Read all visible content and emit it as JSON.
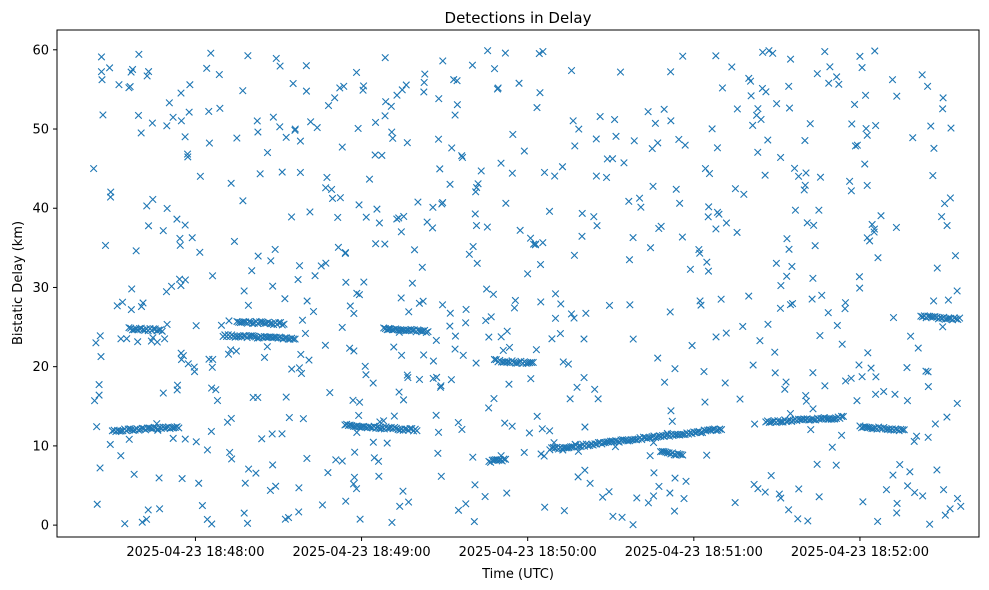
{
  "chart_data": {
    "type": "scatter",
    "title": "Detections in Delay",
    "xlabel": "Time (UTC)",
    "ylabel": "Bistatic Delay (km)",
    "marker": "x",
    "color": "#1f77b4",
    "x_start": "2025-04-23 18:47:23",
    "x_end": "2025-04-23 18:52:37",
    "xlim": [
      "2025-04-23 18:47:10",
      "2025-04-23 18:52:43"
    ],
    "ylim": [
      -1.5,
      62.5
    ],
    "x_ticks": [
      "2025-04-23 18:48:00",
      "2025-04-23 18:49:00",
      "2025-04-23 18:50:00",
      "2025-04-23 18:51:00",
      "2025-04-23 18:52:00"
    ],
    "y_ticks": [
      0,
      10,
      20,
      30,
      40,
      50,
      60
    ],
    "grid": false,
    "series": [
      {
        "tracks": [
          {
            "x_from": "2025-04-23 18:47:30",
            "x_to": "2025-04-23 18:47:54",
            "y_from": 11.9,
            "y_to": 12.4
          },
          {
            "x_from": "2025-04-23 18:47:36",
            "x_to": "2025-04-23 18:47:48",
            "y_from": 24.8,
            "y_to": 24.6
          },
          {
            "x_from": "2025-04-23 18:48:10",
            "x_to": "2025-04-23 18:48:36",
            "y_from": 23.9,
            "y_to": 23.6
          },
          {
            "x_from": "2025-04-23 18:48:15",
            "x_to": "2025-04-23 18:48:32",
            "y_from": 25.7,
            "y_to": 25.4
          },
          {
            "x_from": "2025-04-23 18:48:54",
            "x_to": "2025-04-23 18:49:20",
            "y_from": 12.6,
            "y_to": 12.0
          },
          {
            "x_from": "2025-04-23 18:49:08",
            "x_to": "2025-04-23 18:49:24",
            "y_from": 24.8,
            "y_to": 24.4
          },
          {
            "x_from": "2025-04-23 18:49:46",
            "x_to": "2025-04-23 18:49:52",
            "y_from": 8.0,
            "y_to": 8.3
          },
          {
            "x_from": "2025-04-23 18:50:08",
            "x_to": "2025-04-23 18:51:10",
            "y_from": 9.6,
            "y_to": 12.1
          },
          {
            "x_from": "2025-04-23 18:49:48",
            "x_to": "2025-04-23 18:50:02",
            "y_from": 20.8,
            "y_to": 20.4
          },
          {
            "x_from": "2025-04-23 18:50:48",
            "x_to": "2025-04-23 18:50:56",
            "y_from": 9.2,
            "y_to": 8.8
          },
          {
            "x_from": "2025-04-23 18:51:26",
            "x_to": "2025-04-23 18:51:54",
            "y_from": 13.0,
            "y_to": 13.6
          },
          {
            "x_from": "2025-04-23 18:52:00",
            "x_to": "2025-04-23 18:52:16",
            "y_from": 12.4,
            "y_to": 12.0
          },
          {
            "x_from": "2025-04-23 18:52:22",
            "x_to": "2025-04-23 18:52:36",
            "y_from": 26.3,
            "y_to": 26.0
          }
        ]
      }
    ]
  }
}
